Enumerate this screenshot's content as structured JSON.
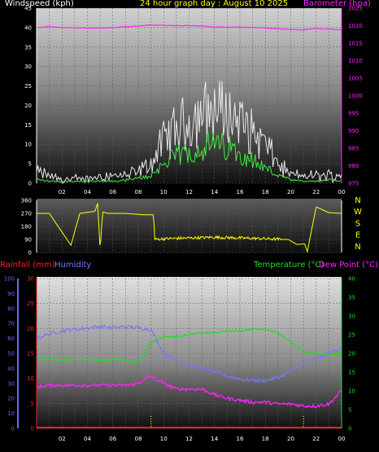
{
  "header": {
    "wind_label": "Windspeed (kph)",
    "title": "24 hour graph day : August 10 2025",
    "baro_label": "Barometer (hpa)"
  },
  "bottom_header": {
    "rain_label": "Rainfall (mm)",
    "humidity_label": "Humidity",
    "temp_label": "Temperature (°C)",
    "dew_label": "Dew Point (°C)"
  },
  "colors": {
    "wind_label": "#ffffff",
    "title": "#ffff00",
    "baro": "#ff22ff",
    "wind_gust": "#e8e8e8",
    "wind_avg": "#40e840",
    "dir": "#ffff00",
    "rain": "#ff2222",
    "humidity": "#7777ff",
    "temperature": "#22dd22",
    "dewpoint": "#ff22ff",
    "axis_left_bottom": "#6666ff",
    "axis_right_bottom": "#22dd22"
  },
  "chart_data": [
    {
      "type": "line",
      "name": "wind-and-barometer",
      "xlabel_ticks": [
        "02",
        "04",
        "06",
        "08",
        "10",
        "12",
        "14",
        "16",
        "18",
        "20",
        "22",
        "00"
      ],
      "y_left": {
        "label": "Windspeed (kph)",
        "ticks": [
          0,
          5,
          10,
          15,
          20,
          25,
          30,
          35,
          40,
          45
        ],
        "ylim": [
          0,
          45
        ]
      },
      "y_right": {
        "label": "Barometer (hpa)",
        "ticks": [
          975,
          980,
          985,
          990,
          995,
          1000,
          1005,
          1010,
          1015,
          1020,
          1025
        ],
        "ylim": [
          975,
          1025
        ]
      },
      "hours": [
        0,
        1,
        2,
        3,
        4,
        5,
        6,
        7,
        8,
        9,
        10,
        11,
        12,
        13,
        14,
        15,
        16,
        17,
        18,
        19,
        20,
        21,
        22,
        23,
        24
      ],
      "barometer": [
        1019.5,
        1019.7,
        1019.5,
        1019.4,
        1019.3,
        1019.3,
        1019.5,
        1019.7,
        1019.9,
        1020.2,
        1020.1,
        1020.0,
        1020.0,
        1019.9,
        1019.6,
        1019.6,
        1019.6,
        1019.5,
        1019.3,
        1019.1,
        1018.9,
        1018.8,
        1019.2,
        1019.0,
        1018.8
      ],
      "gust": [
        3,
        2,
        1,
        1,
        1,
        2,
        2,
        2,
        3,
        5,
        11,
        14,
        16,
        18,
        19,
        18,
        16,
        13,
        10,
        5,
        2,
        2,
        2,
        2,
        2
      ],
      "average": [
        1,
        0.5,
        0.5,
        0.5,
        0.5,
        0.5,
        0.5,
        0.8,
        1.2,
        2,
        5,
        7,
        8,
        9,
        10,
        9,
        8,
        6,
        4,
        2,
        0.8,
        0.5,
        0.5,
        0.8,
        0.8
      ]
    },
    {
      "type": "line",
      "name": "wind-direction",
      "y_ticks": [
        360,
        270,
        180,
        90,
        0
      ],
      "right_labels": [
        "N",
        "W",
        "S",
        "E",
        "N"
      ],
      "hours": [
        0,
        1,
        2.7,
        3.4,
        4.6,
        4.8,
        5.0,
        5.2,
        5.6,
        7,
        8.5,
        9.2,
        9.3,
        10,
        12,
        14,
        16,
        18,
        19.3,
        19.8,
        20.5,
        21.1,
        21.3,
        22.0,
        23.0,
        24
      ],
      "direction": [
        270,
        270,
        50,
        270,
        285,
        340,
        20,
        280,
        270,
        270,
        260,
        260,
        90,
        95,
        100,
        105,
        100,
        95,
        90,
        90,
        55,
        60,
        5,
        315,
        275,
        270
      ]
    },
    {
      "type": "line",
      "name": "temperature-humidity",
      "y_left_humidity": {
        "label": "Humidity",
        "ticks": [
          0,
          10,
          20,
          30,
          40,
          50,
          60,
          70,
          80,
          90,
          100
        ],
        "ylim": [
          0,
          100
        ]
      },
      "y_left_rain": {
        "label": "Rainfall (mm)",
        "ticks": [
          0,
          5,
          10,
          15,
          20,
          25,
          30
        ],
        "ylim": [
          0,
          30
        ]
      },
      "y_right": {
        "label": "Temperature (°C)",
        "ticks": [
          0,
          5,
          10,
          15,
          20,
          25,
          30,
          35,
          40
        ],
        "ylim": [
          0,
          40
        ]
      },
      "hours": [
        0,
        1,
        2,
        3,
        4,
        5,
        6,
        7,
        8,
        9,
        10,
        11,
        12,
        13,
        14,
        15,
        16,
        17,
        18,
        19,
        20,
        21,
        22,
        23,
        24
      ],
      "humidity": [
        60,
        63,
        65,
        66,
        67,
        68,
        67,
        68,
        67,
        66,
        50,
        46,
        42,
        40,
        38,
        35,
        33,
        32,
        32,
        34,
        38,
        44,
        46,
        50,
        54
      ],
      "temperature": [
        18.5,
        18.5,
        18,
        18.5,
        18.5,
        18,
        18.5,
        18,
        17.5,
        23,
        24.5,
        24.5,
        25,
        25.5,
        25.5,
        26,
        26,
        26.5,
        26.5,
        25.5,
        23,
        20.5,
        20,
        19.5,
        20.5
      ],
      "dew_point": [
        11,
        11.5,
        11.5,
        11.5,
        11.5,
        11.5,
        11.5,
        11.5,
        12,
        14,
        12,
        10.5,
        10.5,
        10.5,
        9,
        8,
        7.5,
        7,
        7,
        6.5,
        6.5,
        6,
        6,
        6.5,
        10
      ],
      "rainfall": [
        0,
        0,
        0,
        0,
        0,
        0,
        0,
        0,
        0,
        0,
        0,
        0,
        0,
        0,
        0,
        0,
        0,
        0,
        0,
        0,
        0,
        0,
        0,
        0,
        0
      ],
      "rain_marker_hours": [
        9.0,
        21.0
      ]
    }
  ]
}
